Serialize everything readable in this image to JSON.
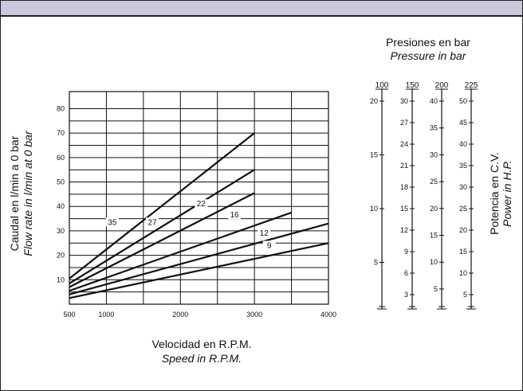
{
  "chart_data": {
    "type": "line",
    "xlabel": "Velocidad en R.P.M.",
    "xlabel_en": "Speed in R.P.M.",
    "ylabel": "Caudal en l/min a 0 bar",
    "ylabel_en": "Flow rate in l/min at 0 bar",
    "xlim": [
      500,
      4000
    ],
    "ylim": [
      0,
      87
    ],
    "x_ticks": [
      {
        "value": 500,
        "label": "500"
      },
      {
        "value": 1000,
        "label": "1000"
      },
      {
        "value": 2000,
        "label": "2000"
      },
      {
        "value": 3000,
        "label": "3000"
      },
      {
        "value": 4000,
        "label": "4000"
      }
    ],
    "x_grid": [
      1000,
      1500,
      2000,
      2500,
      3000,
      3500
    ],
    "y_ticks": [
      {
        "value": 10,
        "label": "10"
      },
      {
        "value": 20,
        "label": "20"
      },
      {
        "value": 30,
        "label": "30"
      },
      {
        "value": 40,
        "label": "40"
      },
      {
        "value": 50,
        "label": "50"
      },
      {
        "value": 60,
        "label": "60"
      },
      {
        "value": 70,
        "label": "70"
      },
      {
        "value": 80,
        "label": "80"
      }
    ],
    "y_grid": [
      5,
      10,
      15,
      20,
      25,
      30,
      35,
      40,
      45,
      50,
      55,
      60,
      65,
      70,
      75,
      80
    ],
    "grid": true,
    "series": [
      {
        "name": "35",
        "x": [
          500,
          3000
        ],
        "y": [
          10.5,
          70
        ],
        "label_at": [
          1080,
          32.5
        ]
      },
      {
        "name": "27",
        "x": [
          500,
          3000
        ],
        "y": [
          8.5,
          55
        ],
        "label_at": [
          1620,
          32.5
        ]
      },
      {
        "name": "22",
        "x": [
          500,
          3000
        ],
        "y": [
          7,
          45.5
        ],
        "label_at": [
          2280,
          40
        ]
      },
      {
        "name": "16",
        "x": [
          500,
          3500
        ],
        "y": [
          5.5,
          37.5
        ],
        "label_at": [
          2730,
          35.5
        ]
      },
      {
        "name": "12",
        "x": [
          500,
          4000
        ],
        "y": [
          4,
          33
        ],
        "label_at": [
          3130,
          28
        ]
      },
      {
        "name": "9",
        "x": [
          500,
          4000
        ],
        "y": [
          2.5,
          25
        ],
        "label_at": [
          3200,
          23
        ]
      }
    ]
  },
  "pressure_title": "Presiones en bar",
  "pressure_title_en": "Pressure in bar",
  "power_label": "Potencia en C.V.",
  "power_label_en": "Power in H.P.",
  "scales": [
    {
      "pressure": "100",
      "left_labels": [
        "20",
        "15",
        "10",
        "5"
      ],
      "right_labels": []
    },
    {
      "pressure": "150",
      "left_labels": [
        "30",
        "27",
        "24",
        "21",
        "18",
        "15",
        "12",
        "9",
        "6",
        "3"
      ],
      "right_labels": []
    },
    {
      "pressure": "200",
      "left_labels": [
        "40",
        "35",
        "30",
        "25",
        "20",
        "15",
        "10",
        "5"
      ],
      "right_labels": []
    },
    {
      "pressure": "225",
      "left_labels": [
        "50",
        "45",
        "40",
        "35",
        "30",
        "25",
        "20",
        "15",
        "10",
        "5"
      ],
      "right_labels": []
    }
  ]
}
